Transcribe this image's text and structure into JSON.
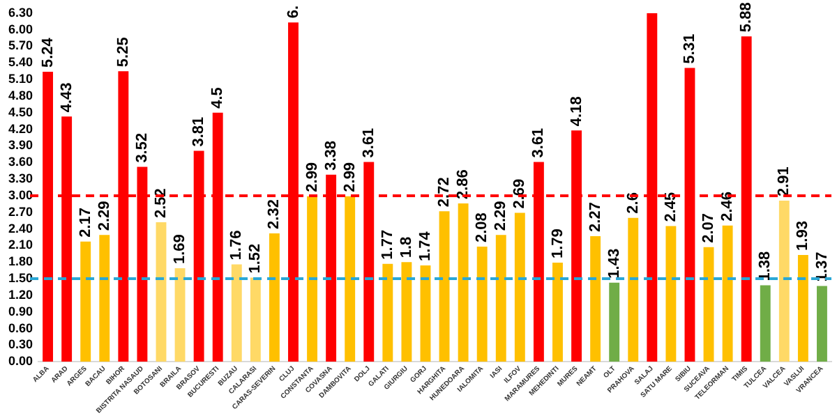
{
  "chart_data": {
    "type": "bar",
    "categories": [
      "ALBA",
      "ARAD",
      "ARGES",
      "BACAU",
      "BIHOR",
      "BISTRITA NASAUD",
      "BOTOSANI",
      "BRAILA",
      "BRASOV",
      "BUCURESTI",
      "BUZAU",
      "CALARASI",
      "CARAS-SEVERIN",
      "CLUJ",
      "CONSTANTA",
      "COVASNA",
      "DAMBOVITA",
      "DOLJ",
      "GALATI",
      "GIURGIU",
      "GORJ",
      "HARGHITA",
      "HUNEDOARA",
      "IALOMITA",
      "IASI",
      "ILFOV",
      "MARAMURES",
      "MEHEDINTI",
      "MURES",
      "NEAMT",
      "OLT",
      "PRAHOVA",
      "SALAJ",
      "SATU MARE",
      "SIBIU",
      "SUCEAVA",
      "TELEORMAN",
      "TIMIS",
      "TULCEA",
      "VALCEA",
      "VASLUI",
      "VRANCEA"
    ],
    "values": [
      5.24,
      4.43,
      2.17,
      2.29,
      5.25,
      3.52,
      2.52,
      1.69,
      3.81,
      4.5,
      1.76,
      1.52,
      2.32,
      6.13,
      2.99,
      3.38,
      2.99,
      3.61,
      1.77,
      1.8,
      1.74,
      2.72,
      2.86,
      2.08,
      2.29,
      2.69,
      3.61,
      1.79,
      4.18,
      2.27,
      1.43,
      2.6,
      6.3,
      2.45,
      5.31,
      2.07,
      2.46,
      5.88,
      1.38,
      2.91,
      1.93,
      1.37
    ],
    "value_labels": [
      "5.24",
      "4.43",
      "2.17",
      "2.29",
      "5.25",
      "3.52",
      "2.52",
      "1.69",
      "3.81",
      "4.5",
      "1.76",
      "1.52",
      "2.32",
      "6.",
      "2.99",
      "3.38",
      "2.99",
      "3.61",
      "1.77",
      "1.8",
      "1.74",
      "2.72",
      "2.86",
      "2.08",
      "2.29",
      "2.69",
      "3.61",
      "1.79",
      "4.18",
      "2.27",
      "1.43",
      "2.6",
      null,
      "2.45",
      "5.31",
      "2.07",
      "2.46",
      "5.88",
      "1.38",
      "2.91",
      "1.93",
      "1.37"
    ],
    "colors": [
      "#ff0000",
      "#ff0000",
      "#ffc000",
      "#ffc000",
      "#ff0000",
      "#ff0000",
      "#ffd966",
      "#ffd966",
      "#ff0000",
      "#ff0000",
      "#ffd966",
      "#ffd966",
      "#ffc000",
      "#ff0000",
      "#ffc000",
      "#ff0000",
      "#ffc000",
      "#ff0000",
      "#ffc000",
      "#ffc000",
      "#ffc000",
      "#ffc000",
      "#ffc000",
      "#ffc000",
      "#ffc000",
      "#ffc000",
      "#ff0000",
      "#ffc000",
      "#ff0000",
      "#ffc000",
      "#70ad47",
      "#ffc000",
      "#ff0000",
      "#ffc000",
      "#ff0000",
      "#ffc000",
      "#ffc000",
      "#ff0000",
      "#70ad47",
      "#ffd966",
      "#ffc000",
      "#70ad47"
    ],
    "ylim": [
      0,
      6.3
    ],
    "yticks": [
      {
        "value": 0,
        "label": "0.00"
      },
      {
        "value": 0.3,
        "label": "0.30"
      },
      {
        "value": 0.6,
        "label": "0.60"
      },
      {
        "value": 0.9,
        "label": "0.90"
      },
      {
        "value": 1.2,
        "label": "1.20"
      },
      {
        "value": 1.5,
        "label": "1.50"
      },
      {
        "value": 1.8,
        "label": "1.80"
      },
      {
        "value": 2.1,
        "label": "2.10"
      },
      {
        "value": 2.4,
        "label": "2.40"
      },
      {
        "value": 2.7,
        "label": "2.70"
      },
      {
        "value": 3,
        "label": "3.00"
      },
      {
        "value": 3.3,
        "label": "3.30"
      },
      {
        "value": 3.6,
        "label": "3.60"
      },
      {
        "value": 3.9,
        "label": "3.90"
      },
      {
        "value": 4.2,
        "label": "4.20"
      },
      {
        "value": 4.5,
        "label": "4.50"
      },
      {
        "value": 4.8,
        "label": "4.80"
      },
      {
        "value": 5.1,
        "label": "5.10"
      },
      {
        "value": 5.4,
        "label": "5.40"
      },
      {
        "value": 5.7,
        "label": "5.70"
      },
      {
        "value": 6,
        "label": "6.00"
      },
      {
        "value": 6.3,
        "label": "6.30"
      }
    ],
    "ref_lines": [
      {
        "axis": "y",
        "value": 3,
        "color": "#ff0000",
        "line_style": "dashed"
      },
      {
        "axis": "y",
        "value": 1.5,
        "color": "#2aa7d6",
        "line_style": "dashed"
      }
    ],
    "grid": false,
    "legend": false
  }
}
